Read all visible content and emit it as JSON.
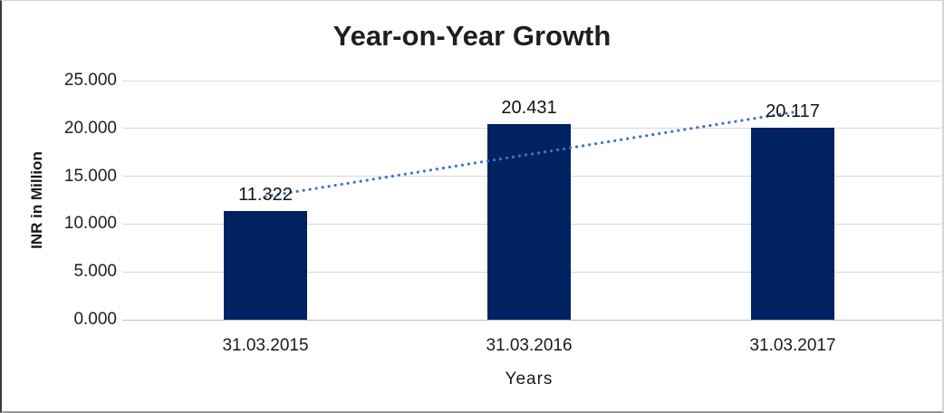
{
  "chart_data": {
    "type": "bar",
    "title": "Year-on-Year Growth",
    "categories": [
      "31.03.2015",
      "31.03.2016",
      "31.03.2017"
    ],
    "values": [
      11.322,
      20.431,
      20.117
    ],
    "data_labels": [
      "11.322",
      "20.431",
      "20.117"
    ],
    "xlabel": "Years",
    "ylabel": "INR in Million",
    "ylim": [
      0,
      25
    ],
    "ytick_interval": 5,
    "ytick_labels": [
      "0.000",
      "5.000",
      "10.000",
      "15.000",
      "20.000",
      "25.000"
    ],
    "grid": true,
    "legend": "none",
    "bar_color": "#002261",
    "trendline": {
      "type": "linear",
      "style": "dotted",
      "color": "#4472c4"
    },
    "text_color": "#1a1a1a",
    "gridline_color": "#d9d9d9"
  }
}
